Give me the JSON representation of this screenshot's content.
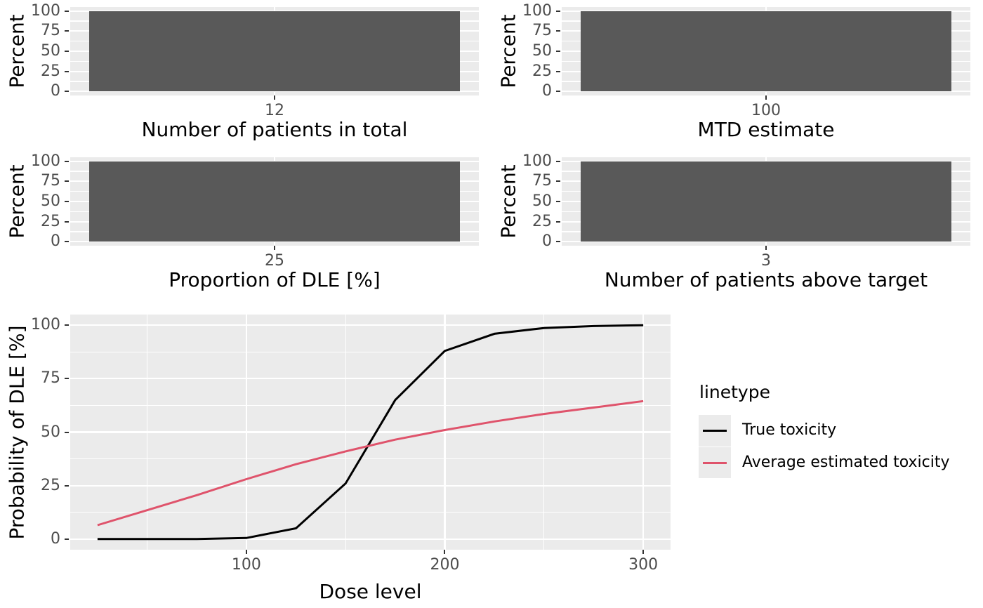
{
  "style": {
    "background": "#FFFFFF",
    "panel_background": "#EBEBEB",
    "gridline_color": "#FFFFFF",
    "bar_fill": "#595959",
    "tick_label_color": "#4D4D4D",
    "axis_title_color": "#000000",
    "tick_mark_color": "#333333",
    "legend_key_background": "#EBEBEB"
  },
  "chart_data": [
    {
      "type": "bar",
      "position": "top-left",
      "ylabel": "Percent",
      "ylim": [
        0,
        100
      ],
      "yticks": [
        0,
        25,
        50,
        75,
        100
      ],
      "categories": [
        "12"
      ],
      "values": [
        100
      ],
      "xlabel": "Number of patients in total",
      "bar_color": "#595959",
      "grid": true
    },
    {
      "type": "bar",
      "position": "top-right",
      "ylabel": "Percent",
      "ylim": [
        0,
        100
      ],
      "yticks": [
        0,
        25,
        50,
        75,
        100
      ],
      "categories": [
        "100"
      ],
      "values": [
        100
      ],
      "xlabel": "MTD estimate",
      "bar_color": "#595959",
      "grid": true
    },
    {
      "type": "bar",
      "position": "middle-left",
      "ylabel": "Percent",
      "ylim": [
        0,
        100
      ],
      "yticks": [
        0,
        25,
        50,
        75,
        100
      ],
      "categories": [
        "25"
      ],
      "values": [
        100
      ],
      "xlabel": "Proportion of DLE [%]",
      "bar_color": "#595959",
      "grid": true
    },
    {
      "type": "bar",
      "position": "middle-right",
      "ylabel": "Percent",
      "ylim": [
        0,
        100
      ],
      "yticks": [
        0,
        25,
        50,
        75,
        100
      ],
      "categories": [
        "3"
      ],
      "values": [
        100
      ],
      "xlabel": "Number of patients above target",
      "bar_color": "#595959",
      "grid": true
    },
    {
      "type": "line",
      "position": "bottom",
      "xlabel": "Dose level",
      "ylabel": "Probability of DLE [%]",
      "xlim": [
        25,
        300
      ],
      "ylim": [
        0,
        100
      ],
      "xticks": [
        100,
        200,
        300
      ],
      "yticks": [
        0,
        25,
        50,
        75,
        100
      ],
      "grid": true,
      "x": [
        25,
        50,
        75,
        100,
        125,
        150,
        175,
        200,
        225,
        250,
        275,
        300
      ],
      "series": [
        {
          "name": "True toxicity",
          "color": "#000000",
          "values": [
            0,
            0,
            0,
            0.5,
            5,
            26,
            65,
            88,
            96,
            98.7,
            99.6,
            100
          ]
        },
        {
          "name": "Average estimated toxicity",
          "color": "#DF536B",
          "values": [
            6.5,
            13.5,
            20.5,
            28,
            35,
            41,
            46.5,
            51,
            55,
            58.5,
            61.5,
            64.5
          ]
        }
      ],
      "legend": {
        "title": "linetype",
        "position": "right"
      }
    }
  ]
}
